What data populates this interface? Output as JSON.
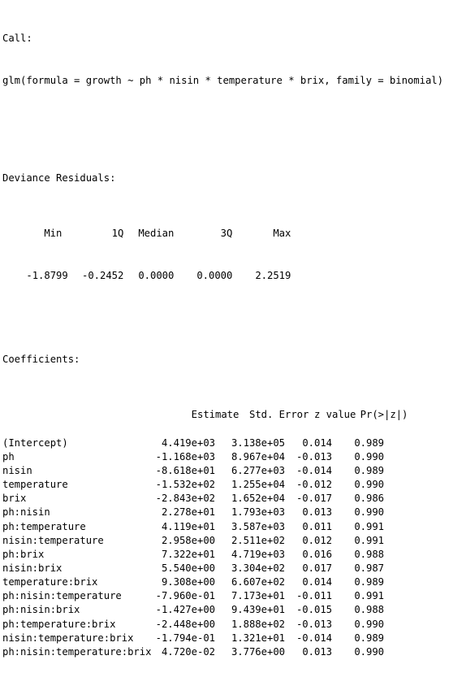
{
  "call": {
    "heading": "Call:",
    "formula": "glm(formula = growth ~ ph * nisin * temperature * brix, family = binomial)"
  },
  "deviance_residuals": {
    "heading": "Deviance Residuals:",
    "headers": [
      "Min",
      "1Q",
      "Median",
      "3Q",
      "Max"
    ],
    "values": [
      "-1.8799",
      "-0.2452",
      "0.0000",
      "0.0000",
      "2.2519"
    ]
  },
  "coefficients": {
    "heading": "Coefficients:",
    "headers": [
      "",
      "Estimate",
      "Std. Error",
      "z value",
      "Pr(>|z|)"
    ],
    "rows": [
      [
        "(Intercept)",
        "4.419e+03",
        "3.138e+05",
        "0.014",
        "0.989"
      ],
      [
        "ph",
        "-1.168e+03",
        "8.967e+04",
        "-0.013",
        "0.990"
      ],
      [
        "nisin",
        "-8.618e+01",
        "6.277e+03",
        "-0.014",
        "0.989"
      ],
      [
        "temperature",
        "-1.532e+02",
        "1.255e+04",
        "-0.012",
        "0.990"
      ],
      [
        "brix",
        "-2.843e+02",
        "1.652e+04",
        "-0.017",
        "0.986"
      ],
      [
        "ph:nisin",
        "2.278e+01",
        "1.793e+03",
        "0.013",
        "0.990"
      ],
      [
        "ph:temperature",
        "4.119e+01",
        "3.587e+03",
        "0.011",
        "0.991"
      ],
      [
        "nisin:temperature",
        "2.958e+00",
        "2.511e+02",
        "0.012",
        "0.991"
      ],
      [
        "ph:brix",
        "7.322e+01",
        "4.719e+03",
        "0.016",
        "0.988"
      ],
      [
        "nisin:brix",
        "5.540e+00",
        "3.304e+02",
        "0.017",
        "0.987"
      ],
      [
        "temperature:brix",
        "9.308e+00",
        "6.607e+02",
        "0.014",
        "0.989"
      ],
      [
        "ph:nisin:temperature",
        "-7.960e-01",
        "7.173e+01",
        "-0.011",
        "0.991"
      ],
      [
        "ph:nisin:brix",
        "-1.427e+00",
        "9.439e+01",
        "-0.015",
        "0.988"
      ],
      [
        "ph:temperature:brix",
        "-2.448e+00",
        "1.888e+02",
        "-0.013",
        "0.990"
      ],
      [
        "nisin:temperature:brix",
        "-1.794e-01",
        "1.321e+01",
        "-0.014",
        "0.989"
      ],
      [
        "ph:nisin:temperature:brix",
        "4.720e-02",
        "3.776e+00",
        "0.013",
        "0.990"
      ]
    ]
  }
}
